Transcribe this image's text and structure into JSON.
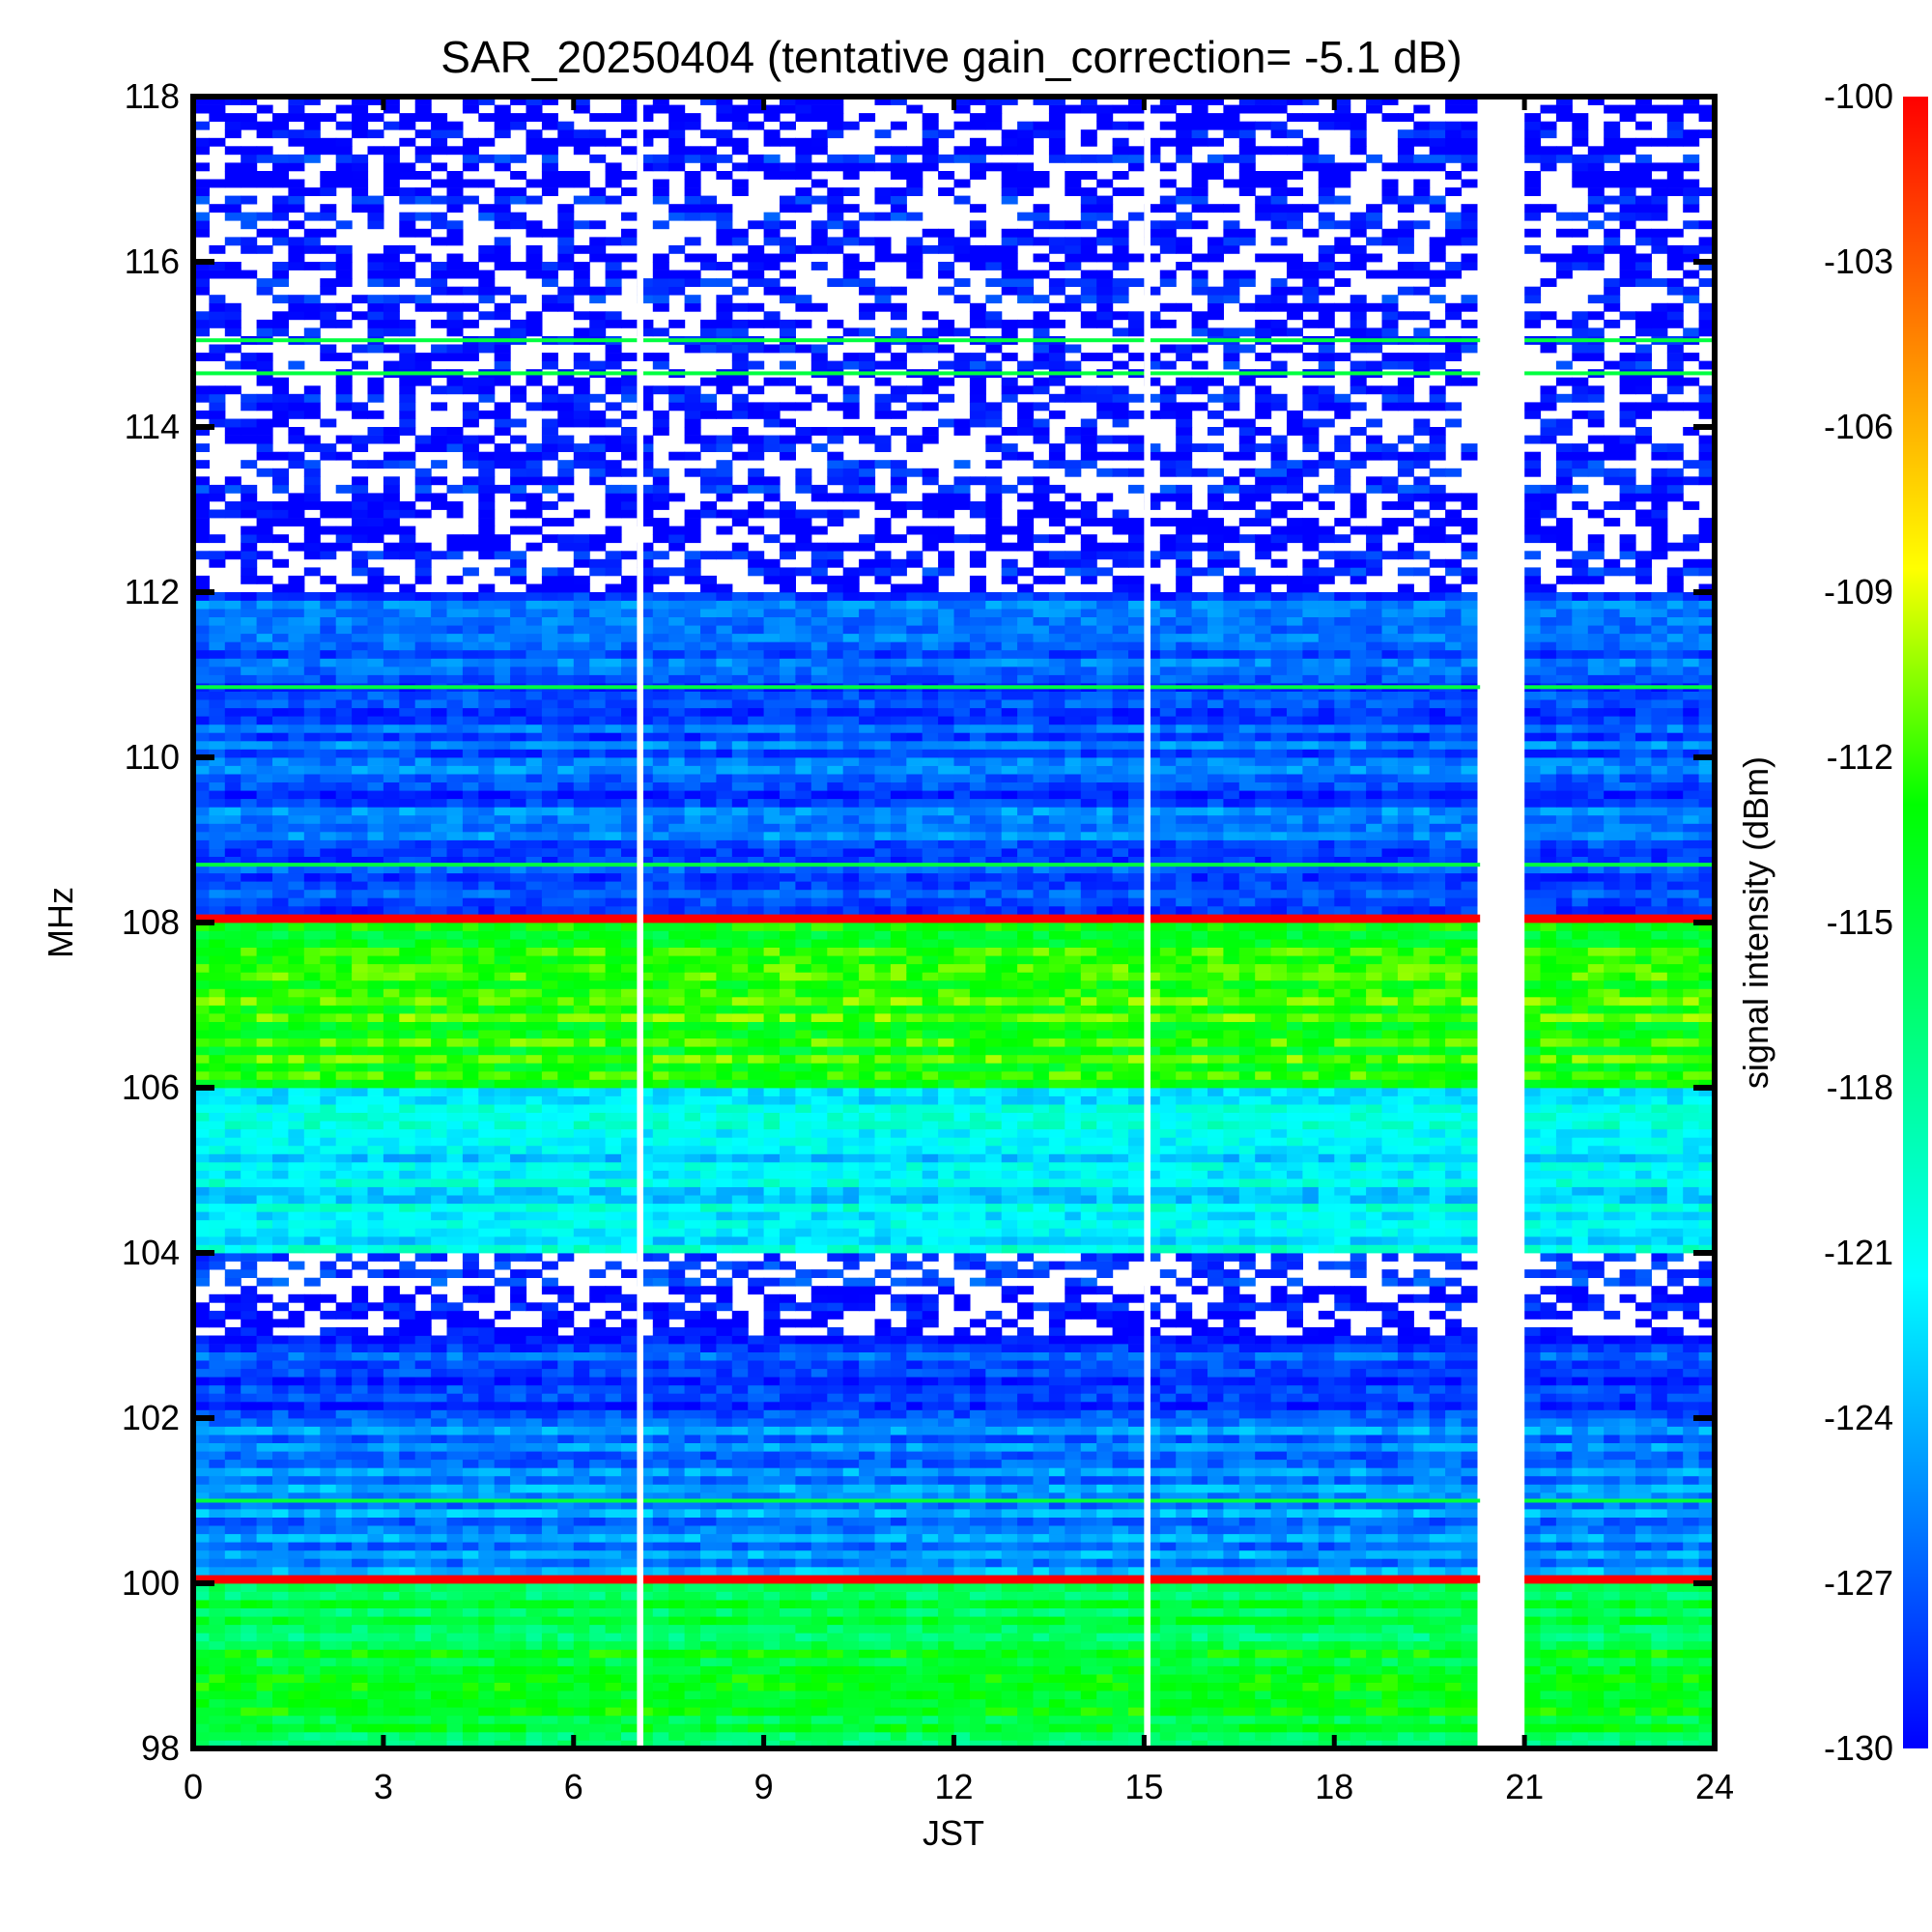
{
  "chart_data": {
    "type": "heatmap",
    "title": "SAR_20250404 (tentative gain_correction= -5.1 dB)",
    "xlabel": "JST",
    "ylabel": "MHz",
    "xlim": [
      0,
      24
    ],
    "ylim": [
      98,
      118
    ],
    "x_ticks": [
      "0",
      "3",
      "6",
      "9",
      "12",
      "15",
      "18",
      "21",
      "24"
    ],
    "y_ticks": [
      "98",
      "100",
      "102",
      "104",
      "106",
      "108",
      "110",
      "112",
      "114",
      "116",
      "118"
    ],
    "colorbar": {
      "label": "signal intensity (dBm)",
      "range": [
        -130,
        -100
      ],
      "ticks": [
        "-100",
        "-103",
        "-106",
        "-109",
        "-112",
        "-115",
        "-118",
        "-121",
        "-124",
        "-127",
        "-130"
      ],
      "colors": [
        "#0000ff",
        "#0080ff",
        "#00ffff",
        "#00ff80",
        "#00ff00",
        "#ffff00",
        "#ff8000",
        "#ff0000"
      ]
    },
    "data_gaps_hours": [
      [
        7.0,
        7.1
      ],
      [
        15.0,
        15.1
      ],
      [
        20.3,
        21.0
      ]
    ],
    "regions": [
      {
        "f_from": 98.0,
        "f_to": 100.0,
        "level_dbm": -115,
        "note": "green-yellow broadband"
      },
      {
        "f_from": 100.0,
        "f_to": 100.1,
        "level_dbm": -100,
        "note": "strong carrier"
      },
      {
        "f_from": 100.1,
        "f_to": 102.0,
        "level_dbm": -125
      },
      {
        "f_from": 102.0,
        "f_to": 103.0,
        "level_dbm": -128
      },
      {
        "f_from": 103.0,
        "f_to": 104.0,
        "level_dbm": -129,
        "note": "sparse"
      },
      {
        "f_from": 104.0,
        "f_to": 106.0,
        "level_dbm": -122
      },
      {
        "f_from": 106.0,
        "f_to": 108.0,
        "level_dbm": -113
      },
      {
        "f_from": 108.0,
        "f_to": 108.1,
        "level_dbm": -100,
        "note": "strong carrier"
      },
      {
        "f_from": 108.1,
        "f_to": 112.0,
        "level_dbm": -127
      },
      {
        "f_from": 112.0,
        "f_to": 118.0,
        "level_dbm": -130,
        "note": "sparse noise"
      }
    ],
    "strong_lines_mhz": [
      100.05,
      108.05
    ],
    "green_lines_mhz": [
      115.05,
      114.65,
      110.85,
      108.7,
      101.0
    ]
  }
}
